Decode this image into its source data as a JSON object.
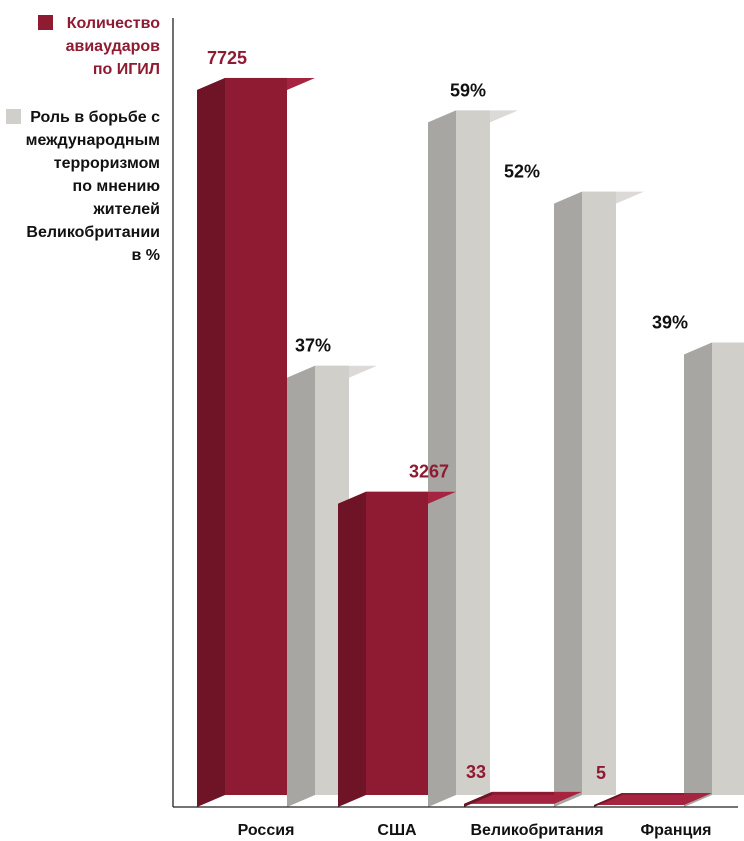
{
  "chart_data": {
    "type": "bar",
    "categories": [
      "Россия",
      "США",
      "Великобритания",
      "Франция"
    ],
    "series": [
      {
        "name": "Количество авиаударов по ИГИЛ",
        "legend_lines": [
          "Количество",
          "авиаударов",
          "по ИГИЛ"
        ],
        "values": [
          7725,
          3267,
          33,
          5
        ],
        "value_labels": [
          "7725",
          "3267",
          "33",
          "5"
        ],
        "color": "#8f1b33"
      },
      {
        "name": "Роль в борьбе с международным терроризмом по мнению жителей Великобритании в %",
        "legend_lines": [
          "Роль в борьбе с",
          "международным",
          "терроризмом",
          "по мнению",
          "жителей",
          "Великобритании",
          "в %"
        ],
        "values": [
          37,
          59,
          52,
          39
        ],
        "value_labels": [
          "37%",
          "59%",
          "52%",
          "39%"
        ],
        "color": "#d1cfca"
      }
    ],
    "ylim_series1": [
      0,
      8500
    ],
    "ylim_series2": [
      0,
      68
    ],
    "three_d": true,
    "grid": false,
    "legend_position": "top-left",
    "colors": {
      "red_front": "#8f1b33",
      "red_side": "#6e1426",
      "red_top": "#a52440",
      "gray_front": "#d1cfca",
      "gray_side": "#a8a6a2",
      "gray_top": "#dcdad6",
      "label_red": "#8f1b33",
      "label_dark": "#111111"
    }
  }
}
